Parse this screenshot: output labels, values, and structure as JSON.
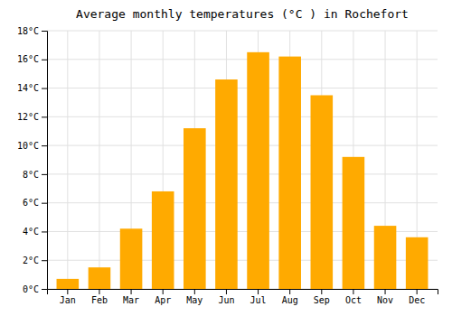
{
  "chart_data": {
    "type": "bar",
    "title": "Average monthly temperatures (°C ) in Rochefort",
    "categories": [
      "Jan",
      "Feb",
      "Mar",
      "Apr",
      "May",
      "Jun",
      "Jul",
      "Aug",
      "Sep",
      "Oct",
      "Nov",
      "Dec"
    ],
    "values": [
      0.7,
      1.5,
      4.2,
      6.8,
      11.2,
      14.6,
      16.5,
      16.2,
      13.5,
      9.2,
      4.4,
      3.6
    ],
    "color": "#FFAA00",
    "ylim": [
      0,
      18
    ],
    "yticks": [
      {
        "value": 0,
        "label": "0°C"
      },
      {
        "value": 2,
        "label": "2°C"
      },
      {
        "value": 4,
        "label": "4°C"
      },
      {
        "value": 6,
        "label": "6°C"
      },
      {
        "value": 8,
        "label": "8°C"
      },
      {
        "value": 10,
        "label": "10°C"
      },
      {
        "value": 12,
        "label": "12°C"
      },
      {
        "value": 14,
        "label": "14°C"
      },
      {
        "value": 16,
        "label": "16°C"
      },
      {
        "value": 18,
        "label": "18°C"
      }
    ],
    "grid": true
  }
}
